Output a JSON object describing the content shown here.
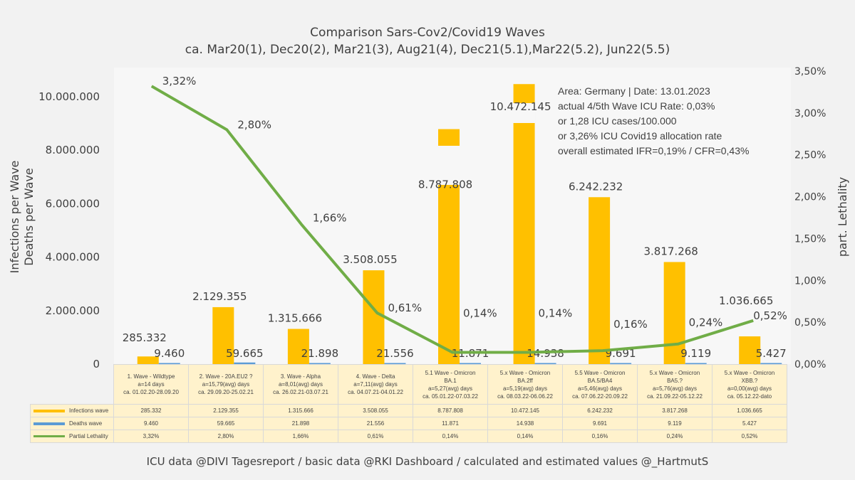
{
  "chart_data": {
    "type": "bar",
    "title": "Comparison Sars-Cov2/Covid19 Waves",
    "subtitle": "ca. Mar20(1), Dec20(2), Mar21(3), Aug21(4), Dec21(5.1),Mar22(5.2), Jun22(5.5)",
    "ylabel": "Infections per Wave\nDeaths per Wave",
    "ylabel_lines": [
      "Infections per Wave",
      "Deaths per Wave"
    ],
    "y2label": "part. Lethality",
    "ylim": [
      0,
      11000000
    ],
    "y2lim": [
      0,
      3.5
    ],
    "yticks": [
      "0",
      "2.000.000",
      "4.000.000",
      "6.000.000",
      "8.000.000",
      "10.000.000"
    ],
    "y2ticks": [
      "0,00%",
      "0,50%",
      "1,00%",
      "1,50%",
      "2,00%",
      "2,50%",
      "3,00%",
      "3,50%"
    ],
    "categories": [
      [
        "1. Wave - Wildtype",
        "a=14 days",
        "ca. 01.02.20-28.09.20"
      ],
      [
        "2. Wave - 20A.EU2 ?",
        "a=15,79(avg) days",
        "ca. 29.09.20-25.02.21"
      ],
      [
        "3. Wave - Alpha",
        "a=8,01(avg) days",
        "ca. 26.02.21-03.07.21"
      ],
      [
        "4. Wave - Delta",
        "a=7,11(avg) days",
        "ca. 04.07.21-04.01.22"
      ],
      [
        "5.1 Wave - Omicron",
        "BA.1",
        "a=5,27(avg) days",
        "ca. 05.01.22-07.03.22"
      ],
      [
        "5.x Wave - Omicron",
        "BA.2ff",
        "a=5,19(avg) days",
        "ca. 08.03.22-06.06.22"
      ],
      [
        "5.5 Wave - Omicron",
        "BA.5/BA4",
        "a=5,46(avg) days",
        "ca. 07.06.22-20.09.22"
      ],
      [
        "5.x Wave - Omicron",
        "BA5.?",
        "a=5,76(avg) days",
        "ca. 21.09.22-05.12.22"
      ],
      [
        "5.x Wave - Omicron",
        "XBB.?",
        "a=0,00(avg) days",
        "ca. 05.12.22-dato"
      ]
    ],
    "series": [
      {
        "name": "Infections wave",
        "type": "bar",
        "axis": "left",
        "color": "#ffc000",
        "values": [
          285332,
          2129355,
          1315666,
          3508055,
          8787808,
          10472145,
          6242232,
          3817268,
          1036665
        ],
        "labels": [
          "285.332",
          "2.129.355",
          "1.315.666",
          "3.508.055",
          "8.787.808",
          "10.472.145",
          "6.242.232",
          "3.817.268",
          "1.036.665"
        ]
      },
      {
        "name": "Deaths wave",
        "type": "bar",
        "axis": "left",
        "color": "#5b9bd5",
        "values": [
          9460,
          59665,
          21898,
          21556,
          11871,
          14938,
          9691,
          9119,
          5427
        ],
        "labels": [
          "9.460",
          "59.665",
          "21.898",
          "21.556",
          "11.871",
          "14.938",
          "9.691",
          "9.119",
          "5.427"
        ]
      },
      {
        "name": "Partial Lethality",
        "type": "line",
        "axis": "right",
        "color": "#70ad47",
        "values": [
          3.32,
          2.8,
          1.66,
          0.61,
          0.14,
          0.14,
          0.16,
          0.24,
          0.52
        ],
        "labels": [
          "3,32%",
          "2,80%",
          "1,66%",
          "0,61%",
          "0,14%",
          "0,14%",
          "0,16%",
          "0,24%",
          "0,52%"
        ]
      }
    ],
    "grid": false,
    "legend": "data-table"
  },
  "annotation": [
    "Area: Germany | Date: 13.01.2023",
    "actual 4/5th Wave ICU Rate: 0,03%",
    "or 1,28 ICU cases/100.000",
    "or 3,26% ICU Covid19 allocation rate",
    "overall estimated  IFR=0,19%  / CFR=0,43%"
  ],
  "footer": "ICU data @DIVI Tagesreport /  basic data @RKI Dashboard / calculated and estimated values  @_HartmutS"
}
